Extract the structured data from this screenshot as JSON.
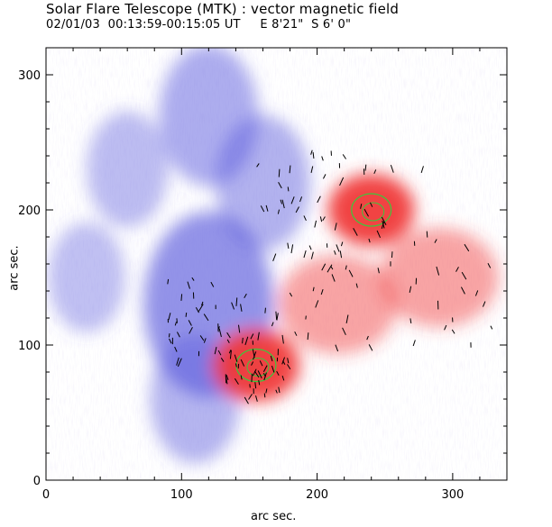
{
  "header": {
    "title": "Solar Flare Telescope (MTK) : vector magnetic field",
    "subtitle": "02/01/03  00:13:59-00:15:05 UT     E 8'21\"  S 6' 0\""
  },
  "axes": {
    "xlabel": "arc sec.",
    "ylabel": "arc sec.",
    "xticks": [
      "0",
      "100",
      "200",
      "300"
    ],
    "yticks": [
      "0",
      "100",
      "200",
      "300"
    ]
  },
  "colors": {
    "negative_polarity": "#5a5adc",
    "positive_polarity": "#f03a3a",
    "contour": "#3cc83c",
    "vector": "#000000"
  },
  "chart_data": {
    "type": "heatmap",
    "xlim": [
      0,
      340
    ],
    "ylim": [
      0,
      320
    ],
    "positive_regions": [
      {
        "x": 240,
        "y": 200,
        "strength": 1.0
      },
      {
        "x": 155,
        "y": 85,
        "strength": 1.0
      },
      {
        "x": 290,
        "y": 150,
        "strength": 0.35
      },
      {
        "x": 215,
        "y": 130,
        "strength": 0.35
      }
    ],
    "negative_regions": [
      {
        "x": 120,
        "y": 130,
        "strength": 0.9
      },
      {
        "x": 120,
        "y": 270,
        "strength": 0.55
      },
      {
        "x": 160,
        "y": 220,
        "strength": 0.5
      },
      {
        "x": 60,
        "y": 230,
        "strength": 0.35
      },
      {
        "x": 110,
        "y": 60,
        "strength": 0.45
      },
      {
        "x": 30,
        "y": 150,
        "strength": 0.3
      }
    ]
  }
}
